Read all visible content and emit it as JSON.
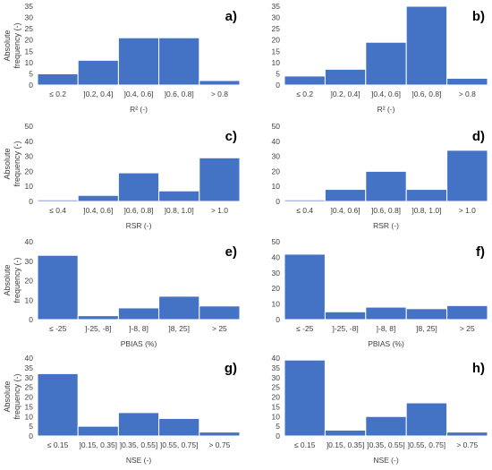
{
  "figure": {
    "ylabel_lines": [
      "Absolute",
      "frequency (-)"
    ],
    "bar_color": "#4472C4",
    "axis_color": "#d9d9d9",
    "text_color": "#404040"
  },
  "chart_data": [
    {
      "id": "a",
      "letter": "a)",
      "type": "bar",
      "categories": [
        "≤ 0.2",
        "]0.2, 0.4]",
        "]0.4, 0.6]",
        "]0.6, 0.8]",
        "> 0.8"
      ],
      "values": [
        5,
        11,
        21,
        21,
        2
      ],
      "xlabel": "R² (-)",
      "ylabel": "Absolute frequency (-)",
      "ylim": [
        0,
        35
      ],
      "yticks": [
        0,
        5,
        10,
        15,
        20,
        25,
        30,
        35
      ]
    },
    {
      "id": "b",
      "letter": "b)",
      "type": "bar",
      "categories": [
        "≤ 0.2",
        "]0.2, 0.4]",
        "]0.4, 0.6]",
        "]0.6, 0.8]",
        "> 0.8"
      ],
      "values": [
        4,
        7,
        19,
        35,
        3
      ],
      "xlabel": "R² (-)",
      "ylabel": "",
      "ylim": [
        0,
        35
      ],
      "yticks": [
        0,
        5,
        10,
        15,
        20,
        25,
        30,
        35
      ]
    },
    {
      "id": "c",
      "letter": "c)",
      "type": "bar",
      "categories": [
        "≤ 0.4",
        "]0.4, 0.6]",
        "]0.6, 0.8]",
        "]0.8, 1.0]",
        "> 1.0"
      ],
      "values": [
        1,
        4,
        19,
        7,
        29
      ],
      "xlabel": "RSR (-)",
      "ylabel": "Absolute frequency (-)",
      "ylim": [
        0,
        50
      ],
      "yticks": [
        0,
        10,
        20,
        30,
        40,
        50
      ]
    },
    {
      "id": "d",
      "letter": "d)",
      "type": "bar",
      "categories": [
        "≤ 0.4",
        "]0.4, 0.6]",
        "]0.6, 0.8]",
        "]0.8, 1.0]",
        "> 1.0"
      ],
      "values": [
        1,
        8,
        20,
        8,
        34
      ],
      "xlabel": "RSR (-)",
      "ylabel": "",
      "ylim": [
        0,
        50
      ],
      "yticks": [
        0,
        10,
        20,
        30,
        40,
        50
      ]
    },
    {
      "id": "e",
      "letter": "e)",
      "type": "bar",
      "categories": [
        "≤ -25",
        "]-25, -8]",
        "]-8, 8]",
        "]8, 25]",
        "> 25"
      ],
      "values": [
        33,
        2,
        6,
        12,
        7
      ],
      "xlabel": "PBIAS (%)",
      "ylabel": "Absolute frequency (-)",
      "ylim": [
        0,
        40
      ],
      "yticks": [
        0,
        10,
        20,
        30,
        40
      ]
    },
    {
      "id": "f",
      "letter": "f)",
      "type": "bar",
      "categories": [
        "≤ -25",
        "]-25, -8]",
        "]-8, 8]",
        "]8, 25]",
        "> 25"
      ],
      "values": [
        42,
        5,
        8,
        7,
        9
      ],
      "xlabel": "PBIAS (%)",
      "ylabel": "",
      "ylim": [
        0,
        50
      ],
      "yticks": [
        0,
        10,
        20,
        30,
        40,
        50
      ]
    },
    {
      "id": "g",
      "letter": "g)",
      "type": "bar",
      "categories": [
        "≤ 0.15",
        "]0.15, 0.35]",
        "]0.35, 0.55]",
        "]0.55, 0.75]",
        "> 0.75"
      ],
      "values": [
        32,
        5,
        12,
        9,
        2
      ],
      "xlabel": "NSE (-)",
      "ylabel": "Absolute frequency (-)",
      "ylim": [
        0,
        40
      ],
      "yticks": [
        0,
        5,
        10,
        15,
        20,
        25,
        30,
        35,
        40
      ]
    },
    {
      "id": "h",
      "letter": "h)",
      "type": "bar",
      "categories": [
        "≤ 0.15",
        "]0.15, 0.35]",
        "]0.35, 0.55]",
        "]0.55, 0.75]",
        "> 0.75"
      ],
      "values": [
        39,
        3,
        10,
        17,
        2
      ],
      "xlabel": "NSE (-)",
      "ylabel": "",
      "ylim": [
        0,
        40
      ],
      "yticks": [
        0,
        5,
        10,
        15,
        20,
        25,
        30,
        35,
        40
      ]
    }
  ]
}
